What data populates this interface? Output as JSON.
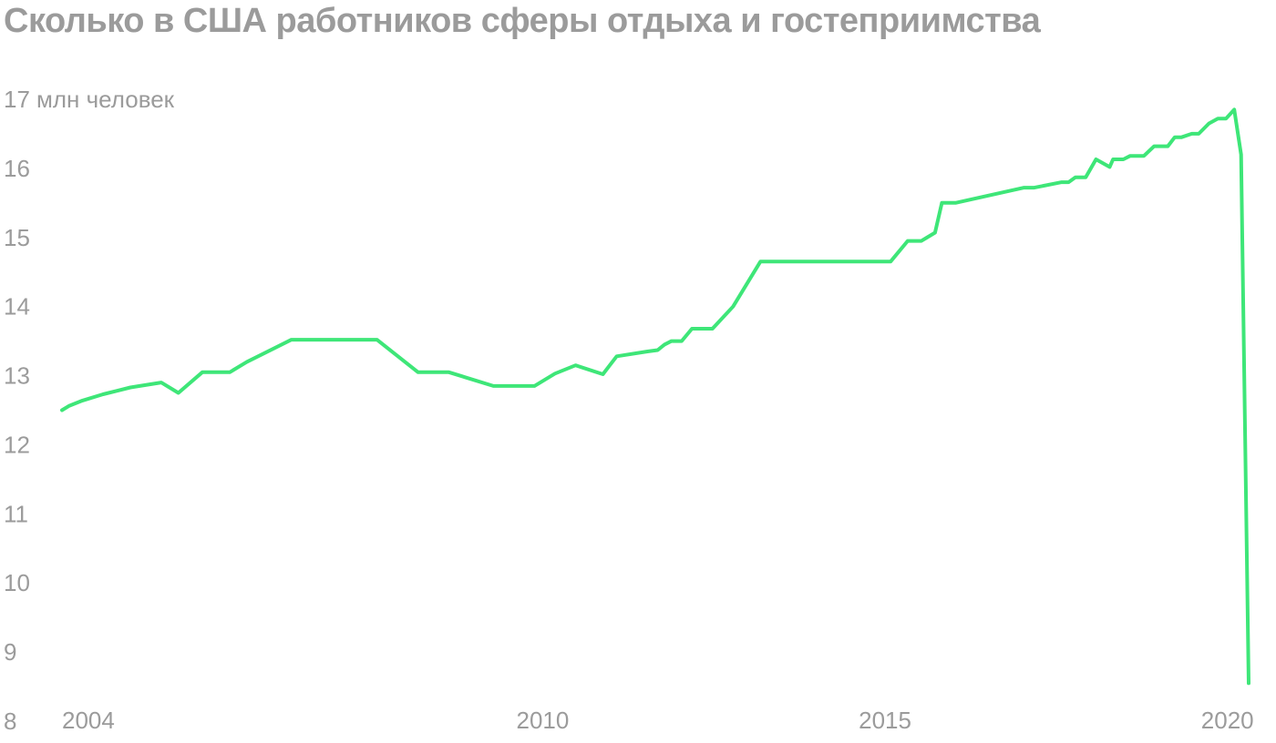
{
  "title": "Сколько в США работников сферы отдыха и гостеприимства",
  "chart_data": {
    "type": "line",
    "title": "Сколько в США работников сферы отдыха и гостеприимства",
    "xlabel": "",
    "ylabel": "",
    "y_unit_label": "млн человек",
    "ylim": [
      8,
      17
    ],
    "y_ticks": [
      8,
      9,
      10,
      11,
      12,
      13,
      14,
      15,
      16,
      17
    ],
    "xlim": [
      2003.0,
      2020.33
    ],
    "x_ticks": [
      2004,
      2010,
      2015,
      2020
    ],
    "grid": false,
    "line_color": "#3ee678",
    "series": [
      {
        "x": [
          2003.0,
          2003.1,
          2003.3,
          2003.6,
          2004.0,
          2004.45,
          2004.7,
          2005.05,
          2005.45,
          2005.7,
          2006.35,
          2007.0,
          2007.6,
          2008.2,
          2008.65,
          2009.3,
          2009.9,
          2010.2,
          2010.5,
          2010.9,
          2011.0,
          2011.1,
          2011.55,
          2011.7,
          2011.8,
          2011.9,
          2012.05,
          2012.2,
          2012.35,
          2012.5,
          2012.8,
          2013.2,
          2015.1,
          2015.35,
          2015.55,
          2015.75,
          2015.85,
          2016.05,
          2017.05,
          2017.2,
          2017.6,
          2017.7,
          2017.8,
          2017.95,
          2018.1,
          2018.3,
          2018.35,
          2018.5,
          2018.6,
          2018.7,
          2018.8,
          2018.95,
          2019.15,
          2019.25,
          2019.35,
          2019.5,
          2019.6,
          2019.75,
          2019.88,
          2020.0,
          2020.12,
          2020.22,
          2020.33
        ],
        "y": [
          12.5,
          12.56,
          12.64,
          12.73,
          12.83,
          12.9,
          12.75,
          13.05,
          13.05,
          13.2,
          13.52,
          13.52,
          13.52,
          13.05,
          13.05,
          12.85,
          12.85,
          13.03,
          13.15,
          13.02,
          13.15,
          13.28,
          13.35,
          13.37,
          13.45,
          13.5,
          13.5,
          13.68,
          13.68,
          13.68,
          14.0,
          14.65,
          14.65,
          14.95,
          14.95,
          15.07,
          15.5,
          15.5,
          15.72,
          15.72,
          15.8,
          15.8,
          15.87,
          15.87,
          16.13,
          16.02,
          16.13,
          16.13,
          16.18,
          16.18,
          16.18,
          16.32,
          16.32,
          16.45,
          16.45,
          16.5,
          16.5,
          16.65,
          16.72,
          16.72,
          16.85,
          16.2,
          8.55
        ],
        "note": ""
      }
    ]
  }
}
